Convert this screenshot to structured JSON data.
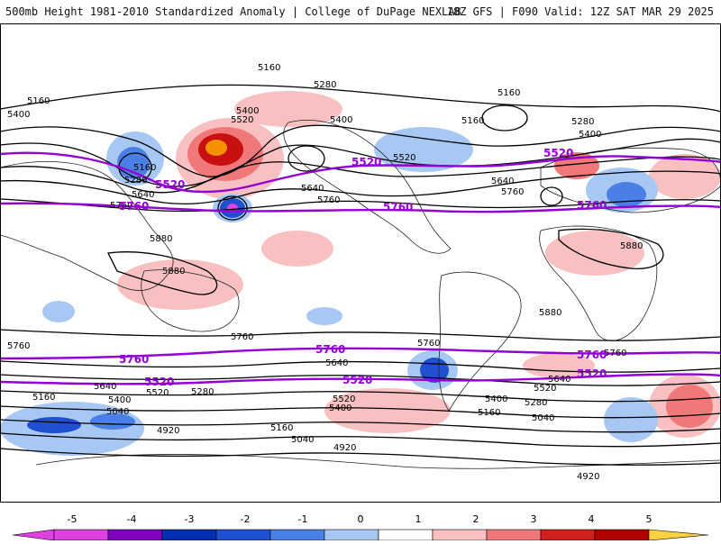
{
  "title": {
    "left": "500mb Height 1981-2010 Standardized Anomaly | College of DuPage NEXLAB",
    "right": "18Z GFS | F090 Valid: 12Z SAT MAR 29 2025"
  },
  "contour_labels": {
    "black": [
      "5160",
      "5280",
      "5400",
      "5520",
      "5640",
      "5760",
      "5880",
      "5040",
      "4920"
    ],
    "purple": [
      "5520",
      "5760"
    ]
  },
  "colorbar": {
    "ticks": [
      "-5",
      "-4",
      "-3",
      "-2",
      "-1",
      "0",
      "1",
      "2",
      "3",
      "4",
      "5"
    ],
    "colors": [
      "#e040e0",
      "#8000c0",
      "#0030b0",
      "#2050d0",
      "#4a80e6",
      "#a8c8f4",
      "#ffffff",
      "#f8c0c0",
      "#f07878",
      "#d22020",
      "#b00000",
      "#f59000",
      "#ffd040"
    ]
  },
  "colors": {
    "height_contour": "#000000",
    "reference_contour": "#9400d3",
    "coastline": "#222222"
  }
}
